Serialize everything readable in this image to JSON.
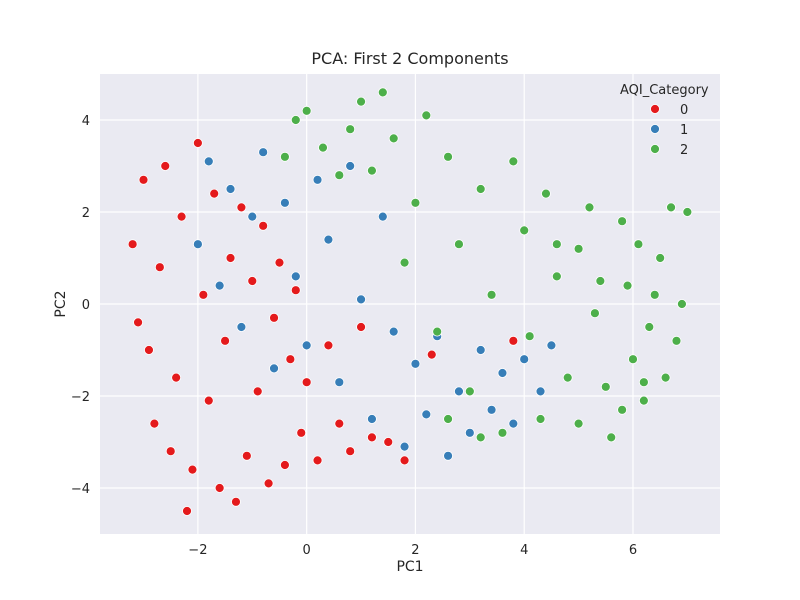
{
  "chart_data": {
    "type": "scatter",
    "title": "PCA: First 2 Components",
    "xlabel": "PC1",
    "ylabel": "PC2",
    "xlim": [
      -3.8,
      7.6
    ],
    "ylim": [
      -5.0,
      5.0
    ],
    "xticks": [
      -2,
      0,
      2,
      4,
      6
    ],
    "yticks": [
      -4,
      -2,
      0,
      2,
      4
    ],
    "xtick_labels": [
      "−2",
      "0",
      "2",
      "4",
      "6"
    ],
    "ytick_labels": [
      "−4",
      "−2",
      "0",
      "2",
      "4"
    ],
    "grid": true,
    "legend": {
      "title": "AQI_Category",
      "placement": "top-right"
    },
    "series": [
      {
        "name": "0",
        "color": "#e41a1c",
        "points": [
          [
            -3.2,
            1.3
          ],
          [
            -3.1,
            -0.4
          ],
          [
            -3.0,
            2.7
          ],
          [
            -2.9,
            -1.0
          ],
          [
            -2.8,
            -2.6
          ],
          [
            -2.7,
            0.8
          ],
          [
            -2.6,
            3.0
          ],
          [
            -2.5,
            -3.2
          ],
          [
            -2.4,
            -1.6
          ],
          [
            -2.3,
            1.9
          ],
          [
            -2.2,
            -4.5
          ],
          [
            -2.1,
            -3.6
          ],
          [
            -2.0,
            3.5
          ],
          [
            -1.9,
            0.2
          ],
          [
            -1.8,
            -2.1
          ],
          [
            -1.7,
            2.4
          ],
          [
            -1.6,
            -4.0
          ],
          [
            -1.5,
            -0.8
          ],
          [
            -1.4,
            1.0
          ],
          [
            -1.3,
            -4.3
          ],
          [
            -1.2,
            2.1
          ],
          [
            -1.1,
            -3.3
          ],
          [
            -1.0,
            0.5
          ],
          [
            -0.9,
            -1.9
          ],
          [
            -0.8,
            1.7
          ],
          [
            -0.7,
            -3.9
          ],
          [
            -0.6,
            -0.3
          ],
          [
            -0.5,
            0.9
          ],
          [
            -0.4,
            -3.5
          ],
          [
            -0.3,
            -1.2
          ],
          [
            -0.2,
            0.3
          ],
          [
            -0.1,
            -2.8
          ],
          [
            0.0,
            -1.7
          ],
          [
            0.2,
            -3.4
          ],
          [
            0.4,
            -0.9
          ],
          [
            0.6,
            -2.6
          ],
          [
            0.8,
            -3.2
          ],
          [
            1.0,
            -0.5
          ],
          [
            1.2,
            -2.9
          ],
          [
            1.5,
            -3.0
          ],
          [
            1.8,
            -3.4
          ],
          [
            2.3,
            -1.1
          ],
          [
            3.8,
            -0.8
          ]
        ]
      },
      {
        "name": "1",
        "color": "#377eb8",
        "points": [
          [
            -2.0,
            1.3
          ],
          [
            -1.8,
            3.1
          ],
          [
            -1.6,
            0.4
          ],
          [
            -1.4,
            2.5
          ],
          [
            -1.2,
            -0.5
          ],
          [
            -1.0,
            1.9
          ],
          [
            -0.8,
            3.3
          ],
          [
            -0.6,
            -1.4
          ],
          [
            -0.4,
            2.2
          ],
          [
            -0.2,
            0.6
          ],
          [
            0.0,
            -0.9
          ],
          [
            0.2,
            2.7
          ],
          [
            0.4,
            1.4
          ],
          [
            0.6,
            -1.7
          ],
          [
            0.8,
            3.0
          ],
          [
            1.0,
            0.1
          ],
          [
            1.2,
            -2.5
          ],
          [
            1.4,
            1.9
          ],
          [
            1.6,
            -0.6
          ],
          [
            1.8,
            -3.1
          ],
          [
            2.0,
            -1.3
          ],
          [
            2.2,
            -2.4
          ],
          [
            2.4,
            -0.7
          ],
          [
            2.6,
            -3.3
          ],
          [
            2.8,
            -1.9
          ],
          [
            3.0,
            -2.8
          ],
          [
            3.2,
            -1.0
          ],
          [
            3.4,
            -2.3
          ],
          [
            3.6,
            -1.5
          ],
          [
            3.8,
            -2.6
          ],
          [
            4.0,
            -1.2
          ],
          [
            4.3,
            -1.9
          ],
          [
            4.5,
            -0.9
          ]
        ]
      },
      {
        "name": "2",
        "color": "#4daf4a",
        "points": [
          [
            -0.4,
            3.2
          ],
          [
            -0.2,
            4.0
          ],
          [
            0.0,
            4.2
          ],
          [
            0.3,
            3.4
          ],
          [
            0.6,
            2.8
          ],
          [
            0.8,
            3.8
          ],
          [
            1.0,
            4.4
          ],
          [
            1.2,
            2.9
          ],
          [
            1.4,
            4.6
          ],
          [
            1.6,
            3.6
          ],
          [
            1.8,
            0.9
          ],
          [
            2.0,
            2.2
          ],
          [
            2.2,
            4.1
          ],
          [
            2.4,
            -0.6
          ],
          [
            2.6,
            3.2
          ],
          [
            2.8,
            1.3
          ],
          [
            3.0,
            -1.9
          ],
          [
            3.2,
            2.5
          ],
          [
            3.4,
            0.2
          ],
          [
            3.6,
            -2.8
          ],
          [
            3.8,
            3.1
          ],
          [
            4.0,
            1.6
          ],
          [
            4.1,
            -0.7
          ],
          [
            4.3,
            -2.5
          ],
          [
            4.4,
            2.4
          ],
          [
            4.6,
            0.6
          ],
          [
            4.8,
            -1.6
          ],
          [
            5.0,
            1.2
          ],
          [
            5.2,
            2.1
          ],
          [
            5.3,
            -0.2
          ],
          [
            5.5,
            -1.8
          ],
          [
            5.6,
            -2.9
          ],
          [
            5.8,
            1.8
          ],
          [
            5.9,
            0.4
          ],
          [
            6.0,
            -1.2
          ],
          [
            6.1,
            1.3
          ],
          [
            6.2,
            -2.1
          ],
          [
            6.3,
            -0.5
          ],
          [
            6.4,
            0.2
          ],
          [
            6.5,
            1.0
          ],
          [
            6.6,
            -1.6
          ],
          [
            6.7,
            2.1
          ],
          [
            6.8,
            -0.8
          ],
          [
            6.9,
            0.0
          ],
          [
            7.0,
            2.0
          ],
          [
            6.2,
            -1.7
          ],
          [
            5.0,
            -2.6
          ],
          [
            5.4,
            0.5
          ],
          [
            4.6,
            1.3
          ],
          [
            3.2,
            -2.9
          ],
          [
            2.6,
            -2.5
          ],
          [
            5.8,
            -2.3
          ]
        ]
      }
    ]
  }
}
